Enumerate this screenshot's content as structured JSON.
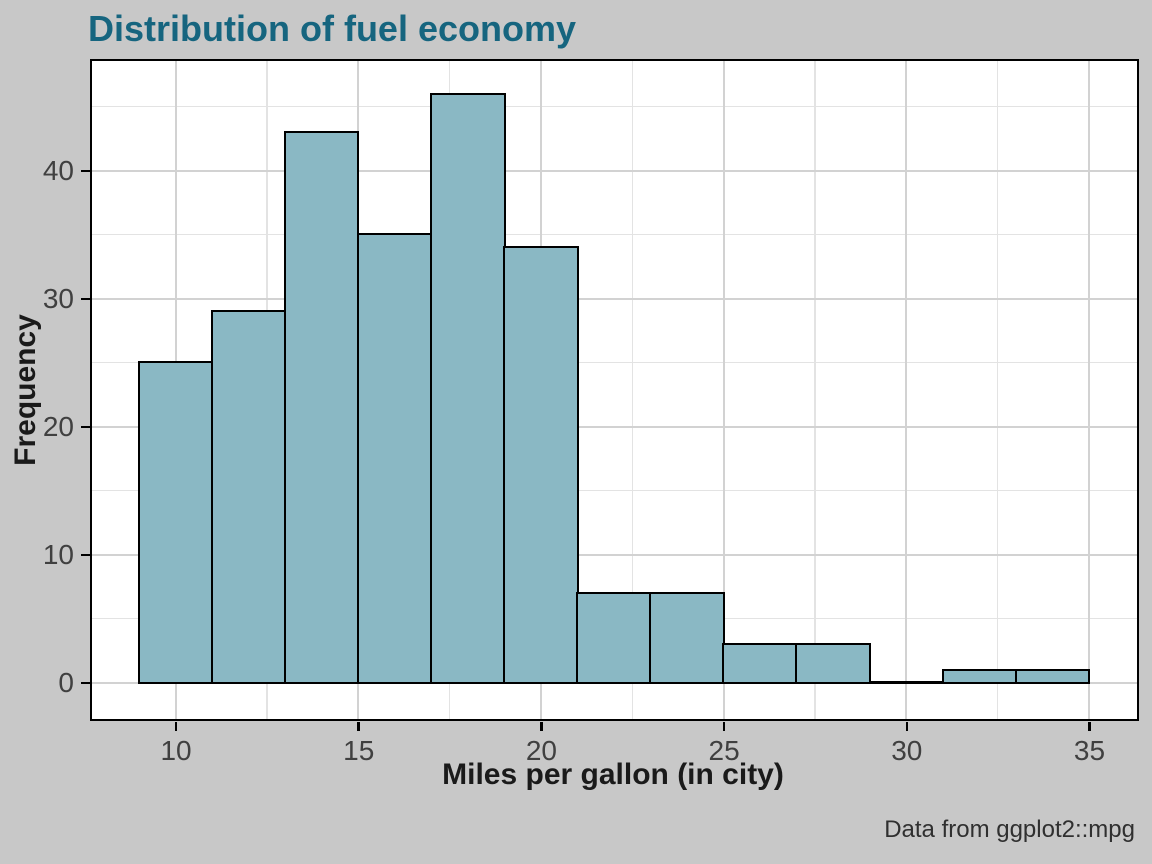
{
  "title": "Distribution of fuel economy",
  "caption": "Data from ggplot2::mpg",
  "chart_data": {
    "type": "bar",
    "variant": "histogram",
    "title": "Distribution of fuel economy",
    "xlabel": "Miles per gallon (in city)",
    "ylabel": "Frequency",
    "bin_width": 2,
    "bin_edges": [
      9,
      11,
      13,
      15,
      17,
      19,
      21,
      23,
      25,
      27,
      29,
      31,
      33,
      35
    ],
    "counts": [
      25,
      29,
      43,
      35,
      46,
      34,
      7,
      7,
      3,
      3,
      0,
      1,
      1
    ],
    "x_ticks": [
      10,
      15,
      20,
      25,
      30,
      35
    ],
    "y_ticks": [
      0,
      10,
      20,
      30,
      40
    ],
    "x_minor_ticks": [
      12.5,
      17.5,
      22.5,
      27.5,
      32.5
    ],
    "y_minor_ticks": [
      5,
      15,
      25,
      35,
      45
    ],
    "xlim": [
      7.7,
      36.3
    ],
    "ylim": [
      -2.8,
      48.6
    ],
    "grid": "on",
    "legend_position": "none",
    "colors": {
      "bar_fill": "#8ab8c4",
      "bar_stroke": "#000000",
      "title": "#16657f",
      "background": "#c8c8c8",
      "panel_background": "#ffffff",
      "panel_border": "#000000",
      "grid_major": "#d2d2d2",
      "grid_minor": "#e3e3e3",
      "tick_label": "#404040",
      "axis_title": "#1a1a1a"
    }
  }
}
